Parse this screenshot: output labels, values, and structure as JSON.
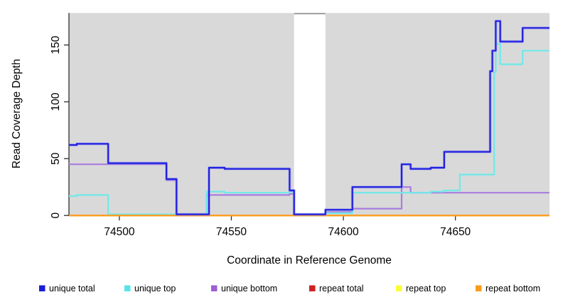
{
  "chart_data": {
    "type": "line",
    "subtype": "step-after",
    "title": "",
    "xlabel": "Coordinate in Reference Genome",
    "ylabel": "Read Coverage Depth",
    "xlim": [
      74477.5,
      74692
    ],
    "ylim": [
      0,
      178
    ],
    "x_ticks": [
      74500,
      74550,
      74600,
      74650
    ],
    "y_ticks": [
      0,
      50,
      100,
      150
    ],
    "grid": false,
    "legend_position": "bottom",
    "plot_background": "#d9d9d9",
    "gap_band": {
      "from": 74578,
      "to": 74592,
      "color": "#ffffff",
      "top_border_color": "#979797"
    },
    "axis_color": "#2e2e2e",
    "series": [
      {
        "name": "unique total",
        "color": "#2121dd",
        "halo": "#8c8cf5",
        "width": 2.2,
        "points": [
          [
            74477.5,
            62
          ],
          [
            74481,
            63
          ],
          [
            74495,
            46
          ],
          [
            74521,
            32
          ],
          [
            74525.5,
            1
          ],
          [
            74540,
            42
          ],
          [
            74547,
            41
          ],
          [
            74576,
            22
          ],
          [
            74578,
            1
          ],
          [
            74592,
            5
          ],
          [
            74604,
            25
          ],
          [
            74626,
            45
          ],
          [
            74630,
            41
          ],
          [
            74639,
            42
          ],
          [
            74645,
            56
          ],
          [
            74665.5,
            127
          ],
          [
            74666.5,
            145
          ],
          [
            74668,
            171
          ],
          [
            74670,
            153
          ],
          [
            74680,
            165
          ]
        ]
      },
      {
        "name": "unique top",
        "color": "#6fe9e9",
        "width": 2.2,
        "points": [
          [
            74477.5,
            17
          ],
          [
            74481,
            18
          ],
          [
            74495,
            1
          ],
          [
            74539,
            21
          ],
          [
            74547,
            20
          ],
          [
            74576,
            21
          ],
          [
            74578,
            0
          ],
          [
            74592,
            2
          ],
          [
            74604,
            20
          ],
          [
            74639,
            21
          ],
          [
            74645,
            22
          ],
          [
            74652,
            36
          ],
          [
            74667.3,
            126
          ],
          [
            74668,
            151
          ],
          [
            74670,
            133
          ],
          [
            74680,
            145
          ]
        ]
      },
      {
        "name": "unique bottom",
        "color": "#a87de0",
        "width": 2.2,
        "points": [
          [
            74477.5,
            45
          ],
          [
            74521,
            31
          ],
          [
            74525.5,
            0
          ],
          [
            74539,
            18
          ],
          [
            74576,
            19
          ],
          [
            74578,
            0
          ],
          [
            74592,
            3
          ],
          [
            74604,
            6
          ],
          [
            74626,
            25
          ],
          [
            74630,
            20
          ]
        ]
      },
      {
        "name": "repeat total",
        "color": "#cd2626",
        "width": 2,
        "points": [
          [
            74477.5,
            0
          ]
        ]
      },
      {
        "name": "repeat top",
        "color": "#f2f23a",
        "width": 2,
        "points": [
          [
            74477.5,
            0
          ]
        ]
      },
      {
        "name": "repeat bottom",
        "color": "#ff9e24",
        "width": 2.4,
        "points": [
          [
            74477.5,
            0
          ]
        ]
      }
    ],
    "draw_order": [
      "repeat total",
      "repeat top",
      "unique bottom",
      "unique top",
      "repeat bottom",
      "unique total"
    ]
  },
  "legend": {
    "items": [
      {
        "label": "unique total",
        "color": "#1c1cd8"
      },
      {
        "label": "unique top",
        "color": "#57e3e8"
      },
      {
        "label": "unique bottom",
        "color": "#9b5fd6"
      },
      {
        "label": "repeat total",
        "color": "#cd2222"
      },
      {
        "label": "repeat top",
        "color": "#fbfb3c"
      },
      {
        "label": "repeat bottom",
        "color": "#fb9c1e"
      }
    ]
  }
}
